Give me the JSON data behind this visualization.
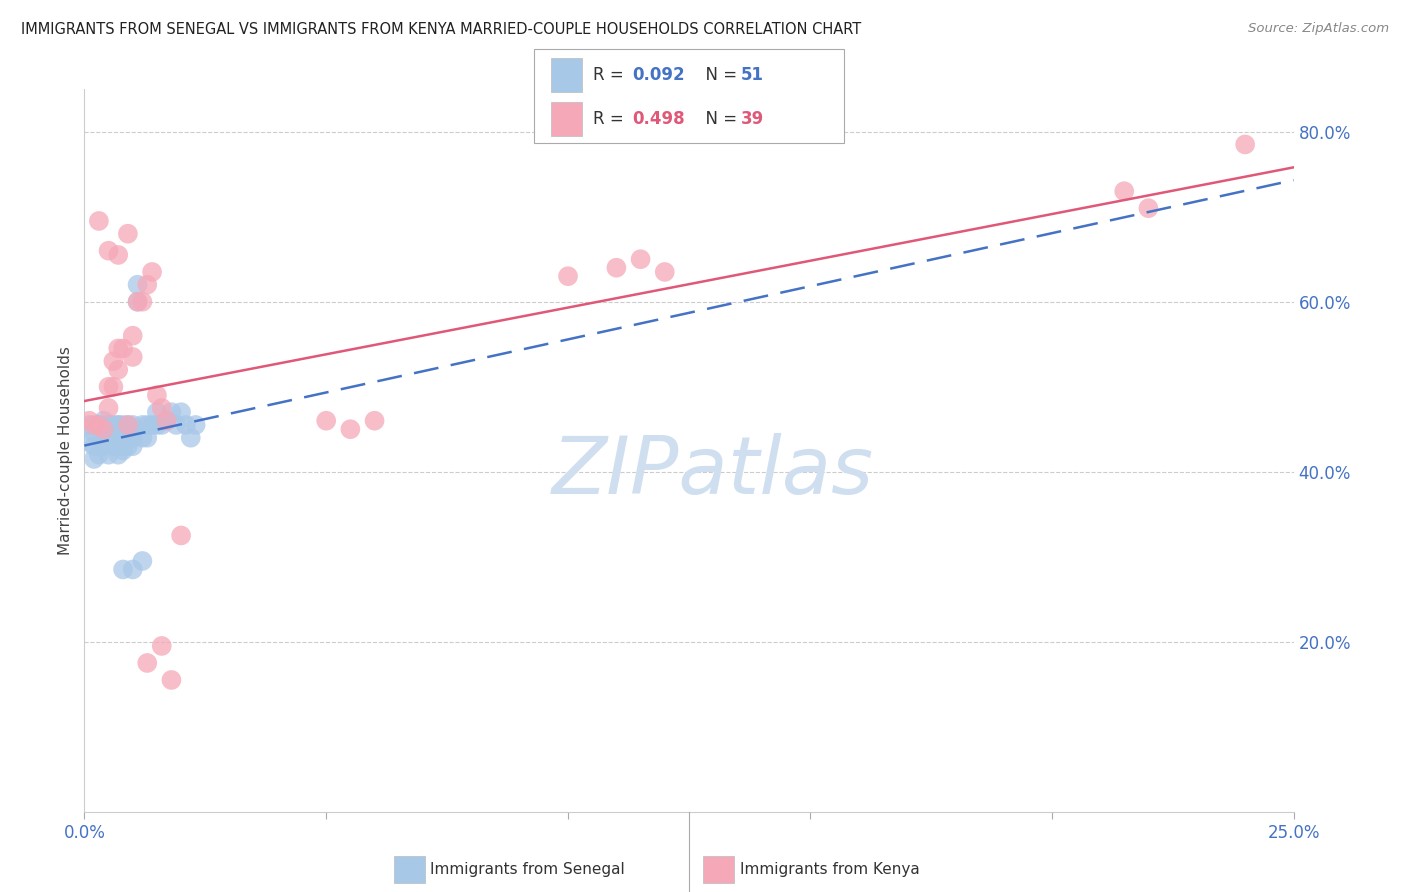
{
  "title": "IMMIGRANTS FROM SENEGAL VS IMMIGRANTS FROM KENYA MARRIED-COUPLE HOUSEHOLDS CORRELATION CHART",
  "source": "Source: ZipAtlas.com",
  "ylabel": "Married-couple Households",
  "xlim": [
    0.0,
    0.25
  ],
  "ylim": [
    0.0,
    0.85
  ],
  "xtick_positions": [
    0.0,
    0.05,
    0.1,
    0.15,
    0.2,
    0.25
  ],
  "xtick_labels": [
    "0.0%",
    "",
    "",
    "",
    "",
    "25.0%"
  ],
  "ytick_values": [
    0.2,
    0.4,
    0.6,
    0.8
  ],
  "ytick_labels": [
    "20.0%",
    "40.0%",
    "60.0%",
    "80.0%"
  ],
  "legend_r1": "0.092",
  "legend_n1": "51",
  "legend_r2": "0.498",
  "legend_n2": "39",
  "senegal_color": "#a8c8e8",
  "kenya_color": "#f5a8b8",
  "senegal_line_color": "#4472c4",
  "kenya_line_color": "#e05878",
  "watermark": "ZIPatlas",
  "watermark_color": "#d0dff0",
  "background_color": "#ffffff",
  "senegal_x": [
    0.001,
    0.001,
    0.002,
    0.002,
    0.002,
    0.003,
    0.003,
    0.003,
    0.004,
    0.004,
    0.004,
    0.005,
    0.005,
    0.005,
    0.006,
    0.006,
    0.006,
    0.007,
    0.007,
    0.007,
    0.007,
    0.008,
    0.008,
    0.008,
    0.008,
    0.009,
    0.009,
    0.009,
    0.01,
    0.01,
    0.01,
    0.011,
    0.011,
    0.012,
    0.012,
    0.013,
    0.013,
    0.014,
    0.015,
    0.015,
    0.016,
    0.017,
    0.018,
    0.019,
    0.02,
    0.021,
    0.022,
    0.023,
    0.008,
    0.01,
    0.012
  ],
  "senegal_y": [
    0.435,
    0.455,
    0.415,
    0.445,
    0.43,
    0.455,
    0.42,
    0.455,
    0.44,
    0.46,
    0.43,
    0.455,
    0.42,
    0.445,
    0.44,
    0.455,
    0.43,
    0.455,
    0.44,
    0.42,
    0.455,
    0.44,
    0.43,
    0.455,
    0.425,
    0.455,
    0.44,
    0.43,
    0.455,
    0.44,
    0.43,
    0.62,
    0.6,
    0.455,
    0.44,
    0.455,
    0.44,
    0.455,
    0.455,
    0.47,
    0.455,
    0.46,
    0.47,
    0.455,
    0.47,
    0.455,
    0.44,
    0.455,
    0.285,
    0.285,
    0.295
  ],
  "kenya_x": [
    0.001,
    0.002,
    0.003,
    0.004,
    0.005,
    0.005,
    0.006,
    0.006,
    0.007,
    0.007,
    0.008,
    0.009,
    0.01,
    0.01,
    0.011,
    0.012,
    0.013,
    0.014,
    0.015,
    0.016,
    0.017,
    0.05,
    0.055,
    0.06,
    0.003,
    0.005,
    0.007,
    0.009,
    0.1,
    0.11,
    0.115,
    0.12,
    0.215,
    0.22,
    0.24,
    0.013,
    0.016,
    0.018,
    0.02
  ],
  "kenya_y": [
    0.46,
    0.455,
    0.455,
    0.45,
    0.475,
    0.5,
    0.5,
    0.53,
    0.52,
    0.545,
    0.545,
    0.455,
    0.535,
    0.56,
    0.6,
    0.6,
    0.62,
    0.635,
    0.49,
    0.475,
    0.46,
    0.46,
    0.45,
    0.46,
    0.695,
    0.66,
    0.655,
    0.68,
    0.63,
    0.64,
    0.65,
    0.635,
    0.73,
    0.71,
    0.785,
    0.175,
    0.195,
    0.155,
    0.325
  ]
}
